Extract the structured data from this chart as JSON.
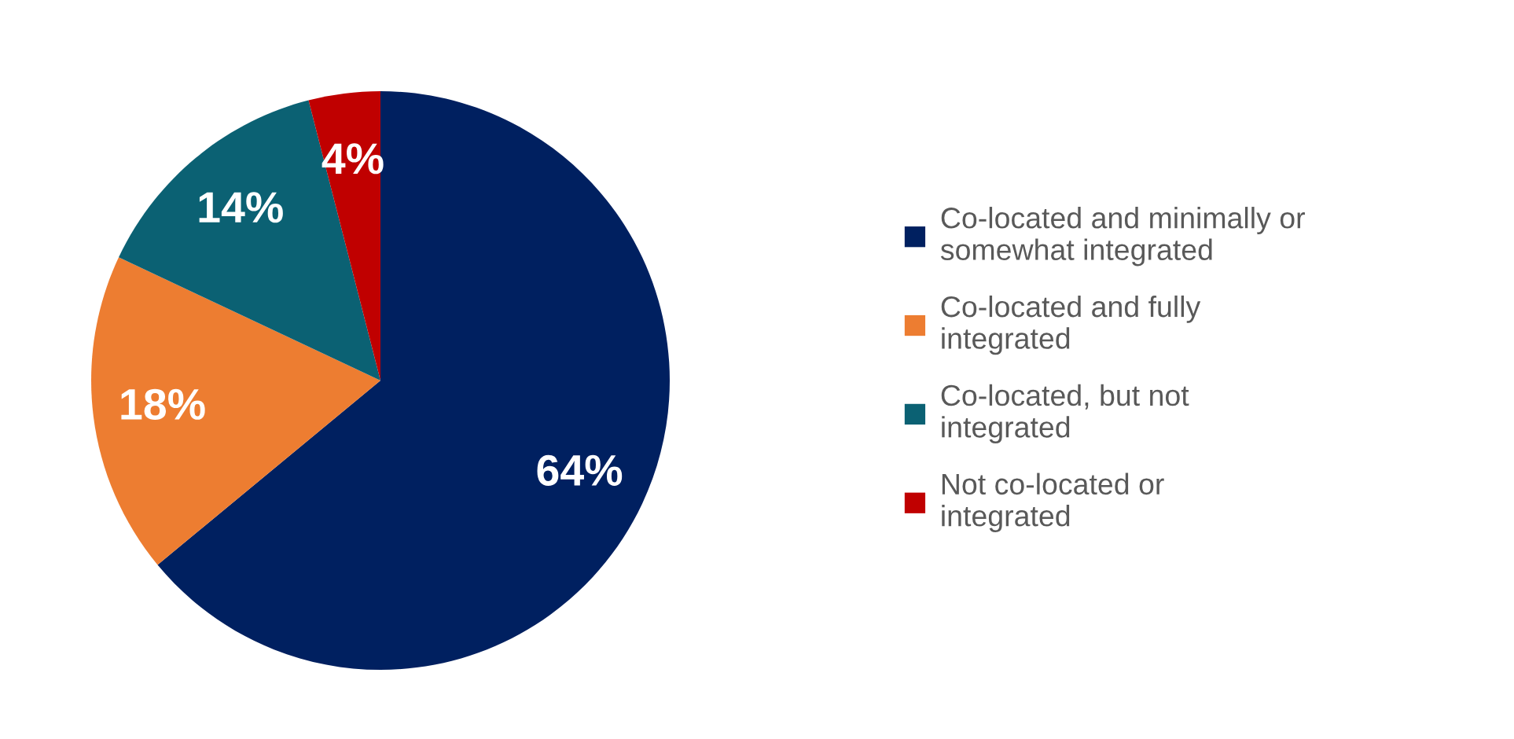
{
  "chart_data": {
    "type": "pie",
    "categories": [
      "Co-located and minimally or somewhat integrated",
      "Co-located and fully integrated",
      "Co-located, but not integrated",
      "Not co-located or integrated"
    ],
    "values": [
      64,
      18,
      14,
      4
    ],
    "colors": [
      "#002060",
      "#ed7d31",
      "#0b6173",
      "#c00000"
    ],
    "value_labels": [
      "64%",
      "18%",
      "14%",
      "4%"
    ],
    "legend": "right"
  }
}
